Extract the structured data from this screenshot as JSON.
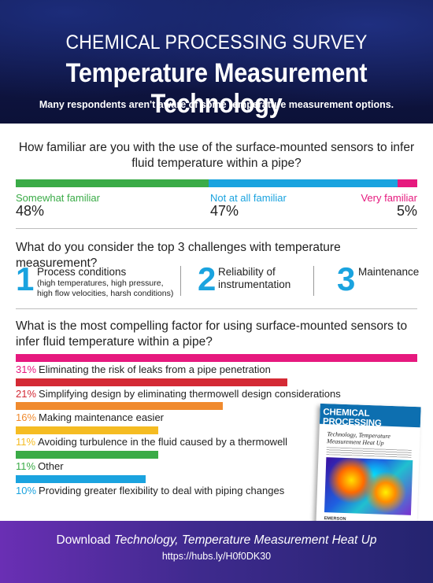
{
  "header": {
    "supertitle": "CHEMICAL PROCESSING SURVEY",
    "title": "Temperature Measurement Technology",
    "subtitle": "Many respondents aren't aware of some temperature measurement options."
  },
  "familiarity": {
    "question": "How familiar are you with the use of the surface-mounted sensors to infer fluid temperature within a pipe?",
    "items": [
      {
        "label": "Somewhat familiar",
        "value": "48%",
        "fraction": 0.48,
        "color": "#3aab47"
      },
      {
        "label": "Not at all familiar",
        "value": "47%",
        "fraction": 0.47,
        "color": "#1aa3df"
      },
      {
        "label": "Very familiar",
        "value": "5%",
        "fraction": 0.05,
        "color": "#e6197e"
      }
    ]
  },
  "challenges": {
    "question": "What do you consider the top 3 challenges with temperature measurement?",
    "items": [
      {
        "number": "1",
        "title": "Process conditions",
        "detail": "(high temperatures, high pressure, high flow velocities, harsh conditions)"
      },
      {
        "number": "2",
        "title": "Reliability of instrumentation",
        "detail": ""
      },
      {
        "number": "3",
        "title": "Maintenance",
        "detail": ""
      }
    ]
  },
  "factors": {
    "question": "What is the most compelling factor for using surface-mounted sensors to infer fluid temperature within a pipe?",
    "items": [
      {
        "pct": "31%",
        "label": "Eliminating the risk of leaks from a pipe penetration",
        "value": 31,
        "color": "#e6197e"
      },
      {
        "pct": "21%",
        "label": "Simplifying design by eliminating thermowell design considerations",
        "value": 21,
        "color": "#d42a35"
      },
      {
        "pct": "16%",
        "label": "Making maintenance easier",
        "value": 16,
        "color": "#f08a2e"
      },
      {
        "pct": "11%",
        "label": "Avoiding turbulence in the fluid caused by a thermowell",
        "value": 11,
        "color": "#f5bc22"
      },
      {
        "pct": "11%",
        "label": "Other",
        "value": 11,
        "color": "#3aab47"
      },
      {
        "pct": "10%",
        "label": "Providing greater flexibility to deal with piping changes",
        "value": 10,
        "color": "#1aa3df"
      }
    ]
  },
  "cover": {
    "masthead": "CHEMICAL PROCESSING",
    "title": "Technology, Temperature Measurement Heat Up",
    "sponsor": "EMERSON"
  },
  "footer": {
    "download_prefix": "Download ",
    "download_title": "Technology, Temperature Measurement Heat Up",
    "url": "https://hubs.ly/H0f0DK30"
  }
}
